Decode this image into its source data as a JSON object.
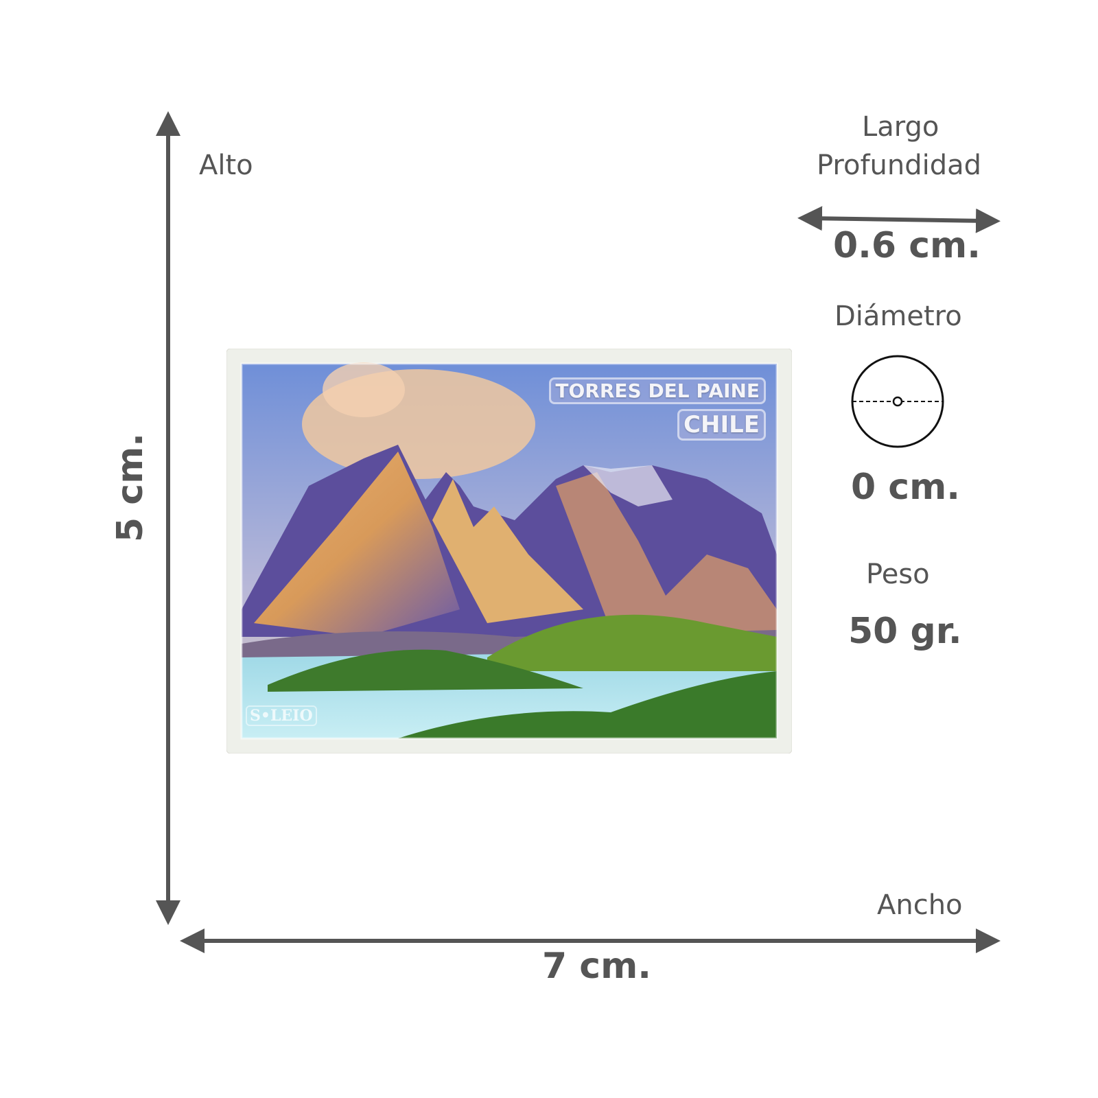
{
  "dimensions": {
    "height": {
      "label": "Alto",
      "value": "5 cm."
    },
    "width": {
      "label": "Ancho",
      "value": "7 cm."
    },
    "depth": {
      "label_line1": "Largo",
      "label_line2": "Profundidad",
      "value": "0.6 cm."
    },
    "diameter": {
      "label": "Diámetro",
      "value": "0 cm."
    },
    "weight": {
      "label": "Peso",
      "value": "50 gr."
    }
  },
  "product": {
    "title_line1": "TORRES DEL PAINE",
    "title_line2": "CHILE",
    "brand_mark": "S•LEIO"
  },
  "colors": {
    "annotation": "#555555",
    "arrow": "#555555"
  }
}
